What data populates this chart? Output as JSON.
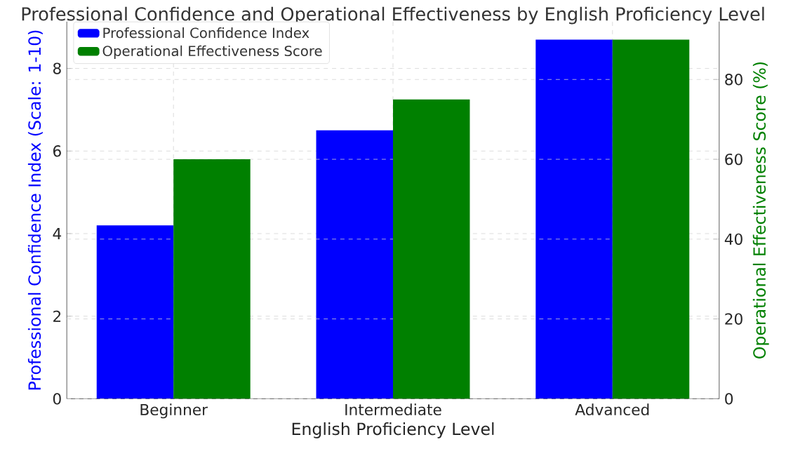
{
  "chart_data": {
    "type": "bar",
    "title": "Professional Confidence and Operational Effectiveness by English Proficiency Level",
    "xlabel": "English Proficiency Level",
    "ylabel": "Professional Confidence Index (Scale: 1-10)",
    "y2label": "Operational Effectiveness Score (%)",
    "categories": [
      "Beginner",
      "Intermediate",
      "Advanced"
    ],
    "series": [
      {
        "name": "Professional Confidence Index",
        "color": "#0000ff",
        "values": [
          4.2,
          6.5,
          8.7
        ]
      },
      {
        "name": "Operational Effectiveness Score",
        "color": "#008000",
        "values": [
          60,
          75,
          90
        ],
        "axis": "y2"
      }
    ],
    "ylim": [
      0,
      9.135
    ],
    "yticks": [
      0,
      2,
      4,
      6,
      8
    ],
    "y2lim": [
      0,
      94.5
    ],
    "y2ticks": [
      0,
      20,
      40,
      60,
      80
    ],
    "grid": true,
    "legend": "top left"
  }
}
